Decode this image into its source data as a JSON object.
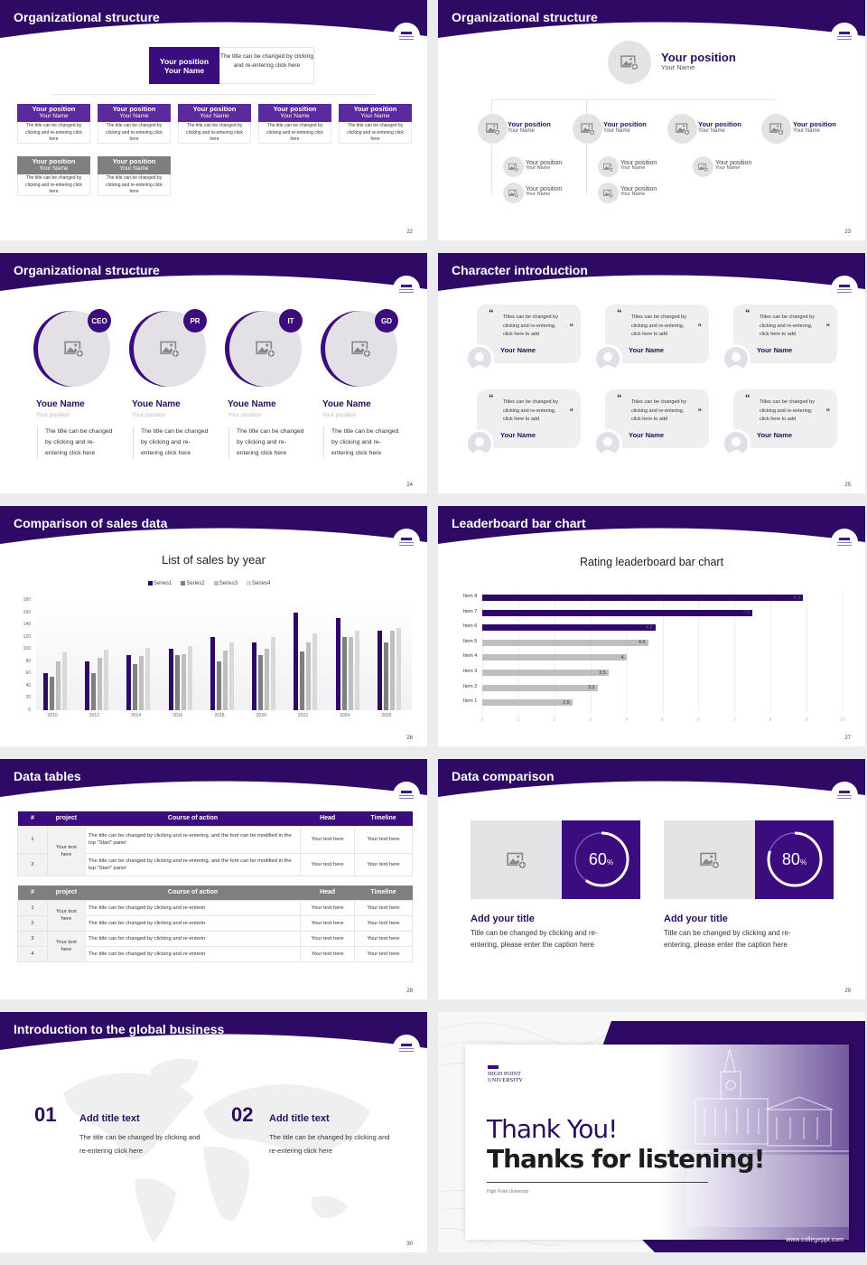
{
  "colors": {
    "brand": "#3b0c7e",
    "brand_light": "#5a2a9a",
    "gray_header": "#7f7f7f",
    "placeholder_gray": "#e3e3e3"
  },
  "common": {
    "logo_text": "High Point University"
  },
  "slides": [
    {
      "page": "22",
      "title": "Organizational structure",
      "top": {
        "position": "Your position",
        "name": "Your Name",
        "desc": "The title can be changed by clicking and re-entering click here"
      },
      "row1": [
        {
          "position": "Your position",
          "name": "Your Name",
          "desc": "The title can be changed by clicking and re-entering click here"
        },
        {
          "position": "Your position",
          "name": "Your Name",
          "desc": "The title can be changed by clicking and re-entering click here"
        },
        {
          "position": "Your position",
          "name": "Your Name",
          "desc": "The title can be changed by clicking and re-entering click here"
        },
        {
          "position": "Your position",
          "name": "Your Name",
          "desc": "The title can be changed by clicking and re-entering click here"
        },
        {
          "position": "Your position",
          "name": "Your Name",
          "desc": "The title can be changed by clicking and re-entering click here"
        }
      ],
      "row2": [
        {
          "position": "Your position",
          "name": "Your Name",
          "desc": "The title can be changed by clicking and re-entering click here"
        },
        {
          "position": "Your position",
          "name": "Your Name",
          "desc": "The title can be changed by clicking and re-entering click here"
        }
      ]
    },
    {
      "page": "23",
      "title": "Organizational structure",
      "top": {
        "position": "Your position",
        "name": "Your Name"
      },
      "level2": [
        {
          "position": "Your position",
          "name": "Your Name"
        },
        {
          "position": "Your position",
          "name": "Your Name"
        },
        {
          "position": "Your position",
          "name": "Your Name"
        },
        {
          "position": "Your position",
          "name": "Your Name"
        }
      ],
      "level3": [
        {
          "position": "Your position",
          "name": "Your Name"
        },
        {
          "position": "Your position",
          "name": "Your Name"
        },
        {
          "position": "Your position",
          "name": "Your Name"
        },
        {
          "position": "Your position",
          "name": "Your Name"
        },
        {
          "position": "Your position",
          "name": "Your Name"
        }
      ]
    },
    {
      "page": "24",
      "title": "Organizational structure",
      "people": [
        {
          "badge": "CEO",
          "name": "Youe Name",
          "position": "Your position",
          "desc": "The title can be changed by clicking and re-entering click here"
        },
        {
          "badge": "PR",
          "name": "Youe Name",
          "position": "Your position",
          "desc": "The title can be changed by clicking and re-entering click here"
        },
        {
          "badge": "IT",
          "name": "Youe Name",
          "position": "Your position",
          "desc": "The title can be changed by clicking and re-entering click here"
        },
        {
          "badge": "GD",
          "name": "Youe Name",
          "position": "Your position",
          "desc": "The title can be changed by clicking and re-entering click here"
        }
      ]
    },
    {
      "page": "25",
      "title": "Character introduction",
      "cards": [
        {
          "text": "Titles can be changed by clicking and re-entering, click here to add",
          "name": "Your Name"
        },
        {
          "text": "Titles can be changed by clicking and re-entering, click here to add",
          "name": "Your Name"
        },
        {
          "text": "Titles can be changed by clicking and re-entering, click here to add",
          "name": "Your Name"
        },
        {
          "text": "Titles can be changed by clicking and re-entering, click here to add",
          "name": "Your Name"
        },
        {
          "text": "Titles can be changed by clicking and re-entering, click here to add",
          "name": "Your Name"
        },
        {
          "text": "Titles can be changed by clicking and re-entering, click here to add",
          "name": "Your Name"
        }
      ]
    },
    {
      "page": "26",
      "title": "Comparison of sales data"
    },
    {
      "page": "27",
      "title": "Leaderboard bar chart"
    },
    {
      "page": "28",
      "title": "Data tables",
      "table1": {
        "headers": [
          "#",
          "project",
          "Course of action",
          "Head",
          "Timeline"
        ],
        "project_cell": "Your text here",
        "rows": [
          {
            "num": "1",
            "action": "The title can be changed by clicking and re-entering, and the font can be modified in the top \"Start\" panel",
            "head": "Your text here",
            "timeline": "Your text here"
          },
          {
            "num": "2",
            "action": "The title can be changed by clicking and re-entering, and the font can be modified in the top \"Start\" panel",
            "head": "Your text here",
            "timeline": "Your text here"
          }
        ]
      },
      "table2": {
        "headers": [
          "#",
          "project",
          "Course of action",
          "Head",
          "Timeline"
        ],
        "project_cells": [
          "Your text here",
          "Your text here"
        ],
        "rows": [
          {
            "num": "1",
            "action": "The title can be changed by clicking and re-enterin",
            "head": "Your text here",
            "timeline": "Your text here"
          },
          {
            "num": "2",
            "action": "The title can be changed by clicking and re-enterin",
            "head": "Your text here",
            "timeline": "Your text here"
          },
          {
            "num": "3",
            "action": "The title can be changed by clicking and re-enterin",
            "head": "Your text here",
            "timeline": "Your text here"
          },
          {
            "num": "4",
            "action": "The title can be changed by clicking and re-enterin",
            "head": "Your text here",
            "timeline": "Your text here"
          }
        ]
      }
    },
    {
      "page": "29",
      "title": "Data comparison",
      "items": [
        {
          "percent": "60",
          "unit": "%",
          "title": "Add your title",
          "desc": "Title can be changed by clicking and re-entering, please enter the caption here"
        },
        {
          "percent": "80",
          "unit": "%",
          "title": "Add your title",
          "desc": "Title can be changed by clicking and re-entering, please enter the caption here"
        }
      ]
    },
    {
      "page": "30",
      "title": "Introduction to the global business",
      "items": [
        {
          "num": "01",
          "title": "Add title text",
          "desc": "The title can be changed by clicking and re-entering click here"
        },
        {
          "num": "02",
          "title": "Add title text",
          "desc": "The title can be changed by clicking and re-entering click here"
        }
      ]
    },
    {
      "title_line1": "Thank You!",
      "title_line2": "Thanks for listening!",
      "subtitle": "High Point University",
      "logo_line1": "HIGH POINT",
      "logo_line2": "UNIVERSITY",
      "url": "www.collegeppt.com"
    }
  ],
  "chart_data": [
    {
      "type": "bar",
      "title": "List of sales by year",
      "categories": [
        "2010",
        "2012",
        "2014",
        "2016",
        "2018",
        "2020",
        "2022",
        "2024",
        "2026"
      ],
      "series": [
        {
          "name": "Series1",
          "color": "#2e0a64",
          "values": [
            60,
            80,
            90,
            100,
            120,
            110,
            160,
            150,
            130
          ]
        },
        {
          "name": "Series2",
          "color": "#7f7f7f",
          "values": [
            55,
            60,
            75,
            90,
            80,
            90,
            96,
            120,
            110
          ]
        },
        {
          "name": "Series3",
          "color": "#bfbfbf",
          "values": [
            80,
            86,
            88,
            92,
            98,
            100,
            110,
            120,
            130
          ]
        },
        {
          "name": "Series4",
          "color": "#d9d9d9",
          "values": [
            95,
            99,
            102,
            105,
            110,
            120,
            126,
            130,
            135
          ]
        }
      ],
      "yticks": [
        "0",
        "20",
        "40",
        "60",
        "80",
        "100",
        "120",
        "140",
        "160",
        "180"
      ],
      "ylim": [
        0,
        180
      ],
      "legend_position": "top",
      "grid": false
    },
    {
      "type": "bar",
      "orientation": "horizontal",
      "title": "Rating leaderboard bar chart",
      "categories": [
        "Item 8",
        "Item 7",
        "Item 6",
        "Item 5",
        "Item 4",
        "Item 3",
        "Item 2",
        "Item 1"
      ],
      "values": [
        8.9,
        7.5,
        4.8,
        4.6,
        4,
        3.5,
        3.2,
        2.5
      ],
      "labels": [
        "8.9",
        "7.5",
        "4.8",
        "4.6",
        "4",
        "3.5",
        "3.2",
        "2.5"
      ],
      "highlight_color": "#2e0a64",
      "base_color": "#bfbfbf",
      "xticks": [
        "0",
        "1",
        "2",
        "3",
        "4",
        "5",
        "6",
        "7",
        "8",
        "9",
        "10"
      ],
      "xlim": [
        0,
        10
      ],
      "grid": true
    }
  ]
}
